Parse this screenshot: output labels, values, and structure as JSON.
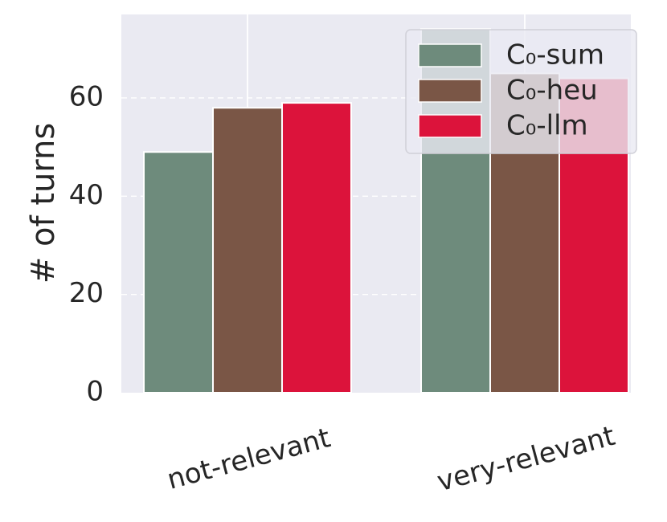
{
  "chart_data": {
    "type": "bar",
    "categories": [
      "not-relevant",
      "very-relevant"
    ],
    "series": [
      {
        "name": "C₀-sum",
        "values": [
          49,
          74
        ],
        "color": "#6e8b7c"
      },
      {
        "name": "C₀-heu",
        "values": [
          58,
          65
        ],
        "color": "#7a5646"
      },
      {
        "name": "C₀-llm",
        "values": [
          59,
          64
        ],
        "color": "#dc133b"
      }
    ],
    "title": "",
    "xlabel": "",
    "ylabel": "# of turns",
    "ylim": [
      0,
      77
    ],
    "yticks": [
      0,
      20,
      40,
      60
    ],
    "grid": true,
    "legend_position": "top-right",
    "background_color": "#eaeaf2",
    "grid_color": "#ffffff"
  }
}
